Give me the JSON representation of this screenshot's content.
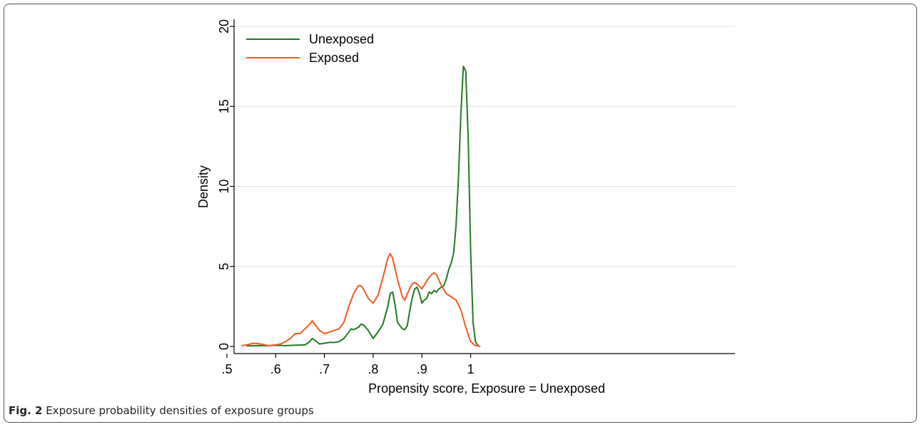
{
  "figure": {
    "caption_label": "Fig. 2",
    "caption_text": "Exposure probability densities of exposure groups"
  },
  "chart_data": {
    "type": "line",
    "title": "",
    "xlabel": "Propensity score, Exposure = Unexposed",
    "ylabel": "Density",
    "xlim": [
      0.5,
      1.02
    ],
    "ylim": [
      0,
      20
    ],
    "xticks": [
      0.5,
      0.6,
      0.7,
      0.8,
      0.9,
      1.0
    ],
    "xtick_labels": [
      ".5",
      ".6",
      ".7",
      ".8",
      ".9",
      "1"
    ],
    "yticks": [
      0,
      5,
      10,
      15,
      20
    ],
    "ytick_labels": [
      "0",
      "5",
      "10",
      "15",
      "20"
    ],
    "grid": "horizontal",
    "legend_position": "top-left",
    "series": [
      {
        "name": "Unexposed",
        "color": "#1e7a1e",
        "x": [
          0.54,
          0.56,
          0.58,
          0.6,
          0.62,
          0.64,
          0.66,
          0.67,
          0.675,
          0.68,
          0.69,
          0.7,
          0.71,
          0.72,
          0.73,
          0.74,
          0.75,
          0.755,
          0.76,
          0.77,
          0.775,
          0.78,
          0.79,
          0.8,
          0.81,
          0.82,
          0.83,
          0.835,
          0.84,
          0.845,
          0.85,
          0.86,
          0.865,
          0.87,
          0.875,
          0.88,
          0.885,
          0.89,
          0.895,
          0.9,
          0.905,
          0.91,
          0.915,
          0.92,
          0.925,
          0.93,
          0.935,
          0.94,
          0.945,
          0.95,
          0.955,
          0.96,
          0.965,
          0.97,
          0.975,
          0.98,
          0.985,
          0.99,
          0.995,
          1.0,
          1.005,
          1.01,
          1.015
        ],
        "y": [
          0.03,
          0.05,
          0.05,
          0.07,
          0.05,
          0.08,
          0.1,
          0.3,
          0.5,
          0.4,
          0.15,
          0.2,
          0.25,
          0.25,
          0.3,
          0.5,
          0.9,
          1.1,
          1.05,
          1.2,
          1.4,
          1.35,
          1.0,
          0.5,
          0.9,
          1.4,
          2.5,
          3.3,
          3.4,
          2.6,
          1.5,
          1.1,
          1.05,
          1.3,
          2.2,
          3.0,
          3.6,
          3.7,
          3.3,
          2.7,
          2.9,
          3.0,
          3.4,
          3.3,
          3.5,
          3.4,
          3.6,
          3.7,
          3.8,
          4.2,
          4.8,
          5.2,
          5.8,
          7.5,
          10.5,
          14.5,
          17.5,
          17.2,
          13.0,
          6.0,
          1.5,
          0.3,
          0.05
        ]
      },
      {
        "name": "Exposed",
        "color": "#f05a1e",
        "x": [
          0.53,
          0.54,
          0.555,
          0.57,
          0.585,
          0.6,
          0.61,
          0.62,
          0.63,
          0.64,
          0.65,
          0.66,
          0.67,
          0.675,
          0.68,
          0.69,
          0.7,
          0.71,
          0.72,
          0.73,
          0.74,
          0.75,
          0.76,
          0.77,
          0.775,
          0.78,
          0.79,
          0.8,
          0.81,
          0.82,
          0.83,
          0.835,
          0.84,
          0.85,
          0.86,
          0.865,
          0.87,
          0.88,
          0.885,
          0.89,
          0.9,
          0.91,
          0.92,
          0.925,
          0.93,
          0.94,
          0.95,
          0.96,
          0.97,
          0.98,
          0.99,
          1.0,
          1.01,
          1.02
        ],
        "y": [
          0.05,
          0.1,
          0.2,
          0.15,
          0.05,
          0.1,
          0.15,
          0.3,
          0.5,
          0.8,
          0.8,
          1.1,
          1.4,
          1.6,
          1.4,
          1.0,
          0.8,
          0.9,
          1.0,
          1.1,
          1.5,
          2.5,
          3.3,
          3.8,
          3.8,
          3.6,
          3.0,
          2.7,
          3.2,
          4.3,
          5.5,
          5.8,
          5.5,
          4.2,
          3.1,
          2.9,
          3.3,
          3.9,
          4.0,
          3.9,
          3.6,
          4.1,
          4.5,
          4.6,
          4.5,
          3.8,
          3.3,
          3.1,
          2.9,
          2.3,
          1.2,
          0.3,
          0.05,
          0.0
        ]
      }
    ]
  }
}
